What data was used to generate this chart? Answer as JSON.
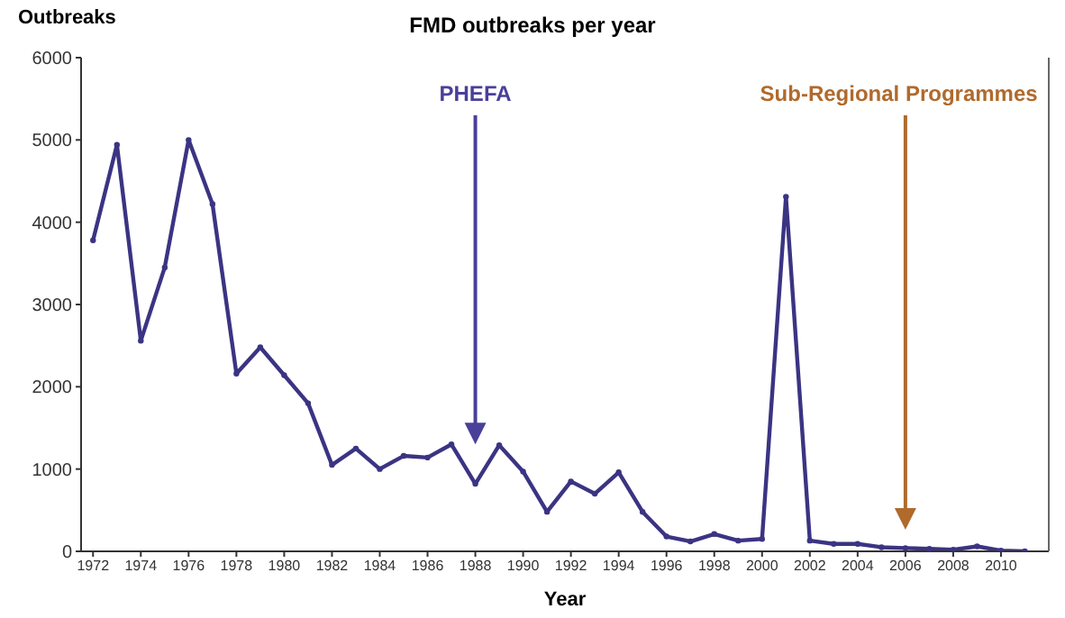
{
  "chart_data": {
    "type": "line",
    "title": "FMD outbreaks per year",
    "xlabel": "Year",
    "ylabel": "Outbreaks",
    "x": [
      1972,
      1973,
      1974,
      1975,
      1976,
      1977,
      1978,
      1979,
      1980,
      1981,
      1982,
      1983,
      1984,
      1985,
      1986,
      1987,
      1988,
      1989,
      1990,
      1991,
      1992,
      1993,
      1994,
      1995,
      1996,
      1997,
      1998,
      1999,
      2000,
      2001,
      2002,
      2003,
      2004,
      2005,
      2006,
      2007,
      2008,
      2009,
      2010,
      2011
    ],
    "series": [
      {
        "color": "#3b3483",
        "values": [
          3780,
          4940,
          2560,
          3450,
          5000,
          4220,
          2160,
          2480,
          2140,
          1800,
          1050,
          1250,
          1000,
          1160,
          1140,
          1300,
          820,
          1290,
          970,
          480,
          850,
          700,
          960,
          480,
          180,
          120,
          210,
          130,
          150,
          4310,
          130,
          90,
          90,
          50,
          40,
          30,
          20,
          60,
          10,
          0
        ]
      }
    ],
    "xlim": [
      1971.5,
      2012
    ],
    "xticks": [
      1972,
      1974,
      1976,
      1978,
      1980,
      1982,
      1984,
      1986,
      1988,
      1990,
      1992,
      1994,
      1996,
      1998,
      2000,
      2002,
      2004,
      2006,
      2008,
      2010
    ],
    "ylim": [
      0,
      6000
    ],
    "yticks": [
      0,
      1000,
      2000,
      3000,
      4000,
      5000,
      6000
    ],
    "ref_lines": [
      {
        "axis": "x",
        "value": 1988,
        "label": "PHEFA",
        "color": "#4a3f99"
      },
      {
        "axis": "x",
        "value": 2006,
        "label": "Sub-Regional Programmes",
        "color": "#b06a2c"
      }
    ],
    "grid": false,
    "legend": false,
    "marker": "circle",
    "line_style": "solid"
  }
}
